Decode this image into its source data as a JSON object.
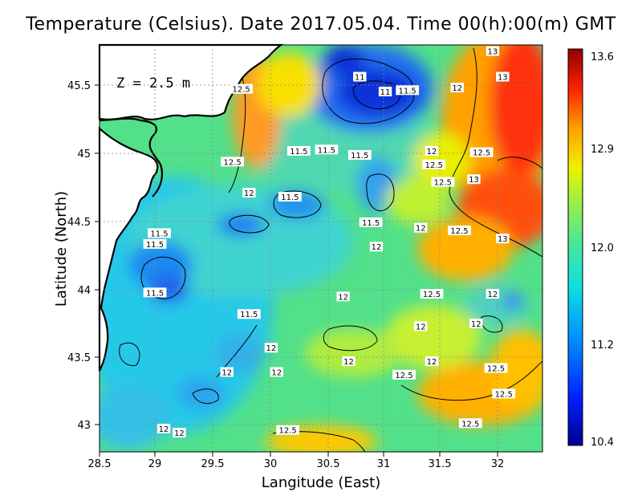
{
  "title": "Temperature (Celsius). Date 2017.05.04. Time 00(h):00(m)  GMT",
  "depth_label": "Z = 2.5 m",
  "x_axis": {
    "label": "Langitude (East)",
    "ticks": [
      "28.5",
      "29",
      "29.5",
      "30",
      "30.5",
      "31",
      "31.5",
      "32"
    ]
  },
  "y_axis": {
    "label": "Latitude (North)",
    "ticks": [
      "43",
      "43.5",
      "44",
      "44.5",
      "45",
      "45.5"
    ]
  },
  "colorbar": {
    "ticks": [
      "13.6",
      "12.9",
      "12.0",
      "11.2",
      "10.4"
    ],
    "min": 10.4,
    "max": 13.6
  },
  "contour_labels": [
    {
      "text": "11",
      "lon": 30.85,
      "lat": 45.58
    },
    {
      "text": "11",
      "lon": 31.08,
      "lat": 45.47
    },
    {
      "text": "11.5",
      "lon": 31.28,
      "lat": 45.48
    },
    {
      "text": "12",
      "lon": 31.73,
      "lat": 45.5
    },
    {
      "text": "12.5",
      "lon": 29.78,
      "lat": 45.49
    },
    {
      "text": "13",
      "lon": 32.05,
      "lat": 45.77
    },
    {
      "text": "13",
      "lon": 32.14,
      "lat": 45.58
    },
    {
      "text": "11.5",
      "lon": 30.3,
      "lat": 45.03
    },
    {
      "text": "11.5",
      "lon": 30.55,
      "lat": 45.04
    },
    {
      "text": "11.5",
      "lon": 30.85,
      "lat": 45.0
    },
    {
      "text": "12",
      "lon": 31.5,
      "lat": 45.03
    },
    {
      "text": "12.5",
      "lon": 31.95,
      "lat": 45.02
    },
    {
      "text": "12.5",
      "lon": 31.52,
      "lat": 44.93
    },
    {
      "text": "12.5",
      "lon": 29.7,
      "lat": 44.95
    },
    {
      "text": "13",
      "lon": 31.88,
      "lat": 44.82
    },
    {
      "text": "12.5",
      "lon": 31.6,
      "lat": 44.8
    },
    {
      "text": "12",
      "lon": 29.85,
      "lat": 44.72
    },
    {
      "text": "11.5",
      "lon": 30.22,
      "lat": 44.69
    },
    {
      "text": "11.5",
      "lon": 30.95,
      "lat": 44.5
    },
    {
      "text": "12",
      "lon": 31.4,
      "lat": 44.46
    },
    {
      "text": "12.5",
      "lon": 31.75,
      "lat": 44.44
    },
    {
      "text": "13",
      "lon": 32.14,
      "lat": 44.38
    },
    {
      "text": "11.5",
      "lon": 29.04,
      "lat": 44.42
    },
    {
      "text": "11.5",
      "lon": 29.0,
      "lat": 44.34
    },
    {
      "text": "12",
      "lon": 31.0,
      "lat": 44.32
    },
    {
      "text": "11.5",
      "lon": 29.0,
      "lat": 43.98
    },
    {
      "text": "12",
      "lon": 30.7,
      "lat": 43.95
    },
    {
      "text": "12.5",
      "lon": 31.5,
      "lat": 43.97
    },
    {
      "text": "12",
      "lon": 32.05,
      "lat": 43.97
    },
    {
      "text": "11.5",
      "lon": 29.85,
      "lat": 43.82
    },
    {
      "text": "12",
      "lon": 31.4,
      "lat": 43.73
    },
    {
      "text": "12",
      "lon": 31.9,
      "lat": 43.75
    },
    {
      "text": "12",
      "lon": 30.05,
      "lat": 43.57
    },
    {
      "text": "12",
      "lon": 30.75,
      "lat": 43.47
    },
    {
      "text": "12",
      "lon": 31.5,
      "lat": 43.47
    },
    {
      "text": "12",
      "lon": 30.1,
      "lat": 43.39
    },
    {
      "text": "12.5",
      "lon": 31.25,
      "lat": 43.37
    },
    {
      "text": "12.5",
      "lon": 32.08,
      "lat": 43.42
    },
    {
      "text": "12",
      "lon": 29.65,
      "lat": 43.39
    },
    {
      "text": "12.5",
      "lon": 32.15,
      "lat": 43.23
    },
    {
      "text": "12.5",
      "lon": 31.85,
      "lat": 43.01
    },
    {
      "text": "12",
      "lon": 29.08,
      "lat": 42.97
    },
    {
      "text": "12",
      "lon": 29.22,
      "lat": 42.94
    },
    {
      "text": "12.5",
      "lon": 30.2,
      "lat": 42.96
    }
  ]
}
